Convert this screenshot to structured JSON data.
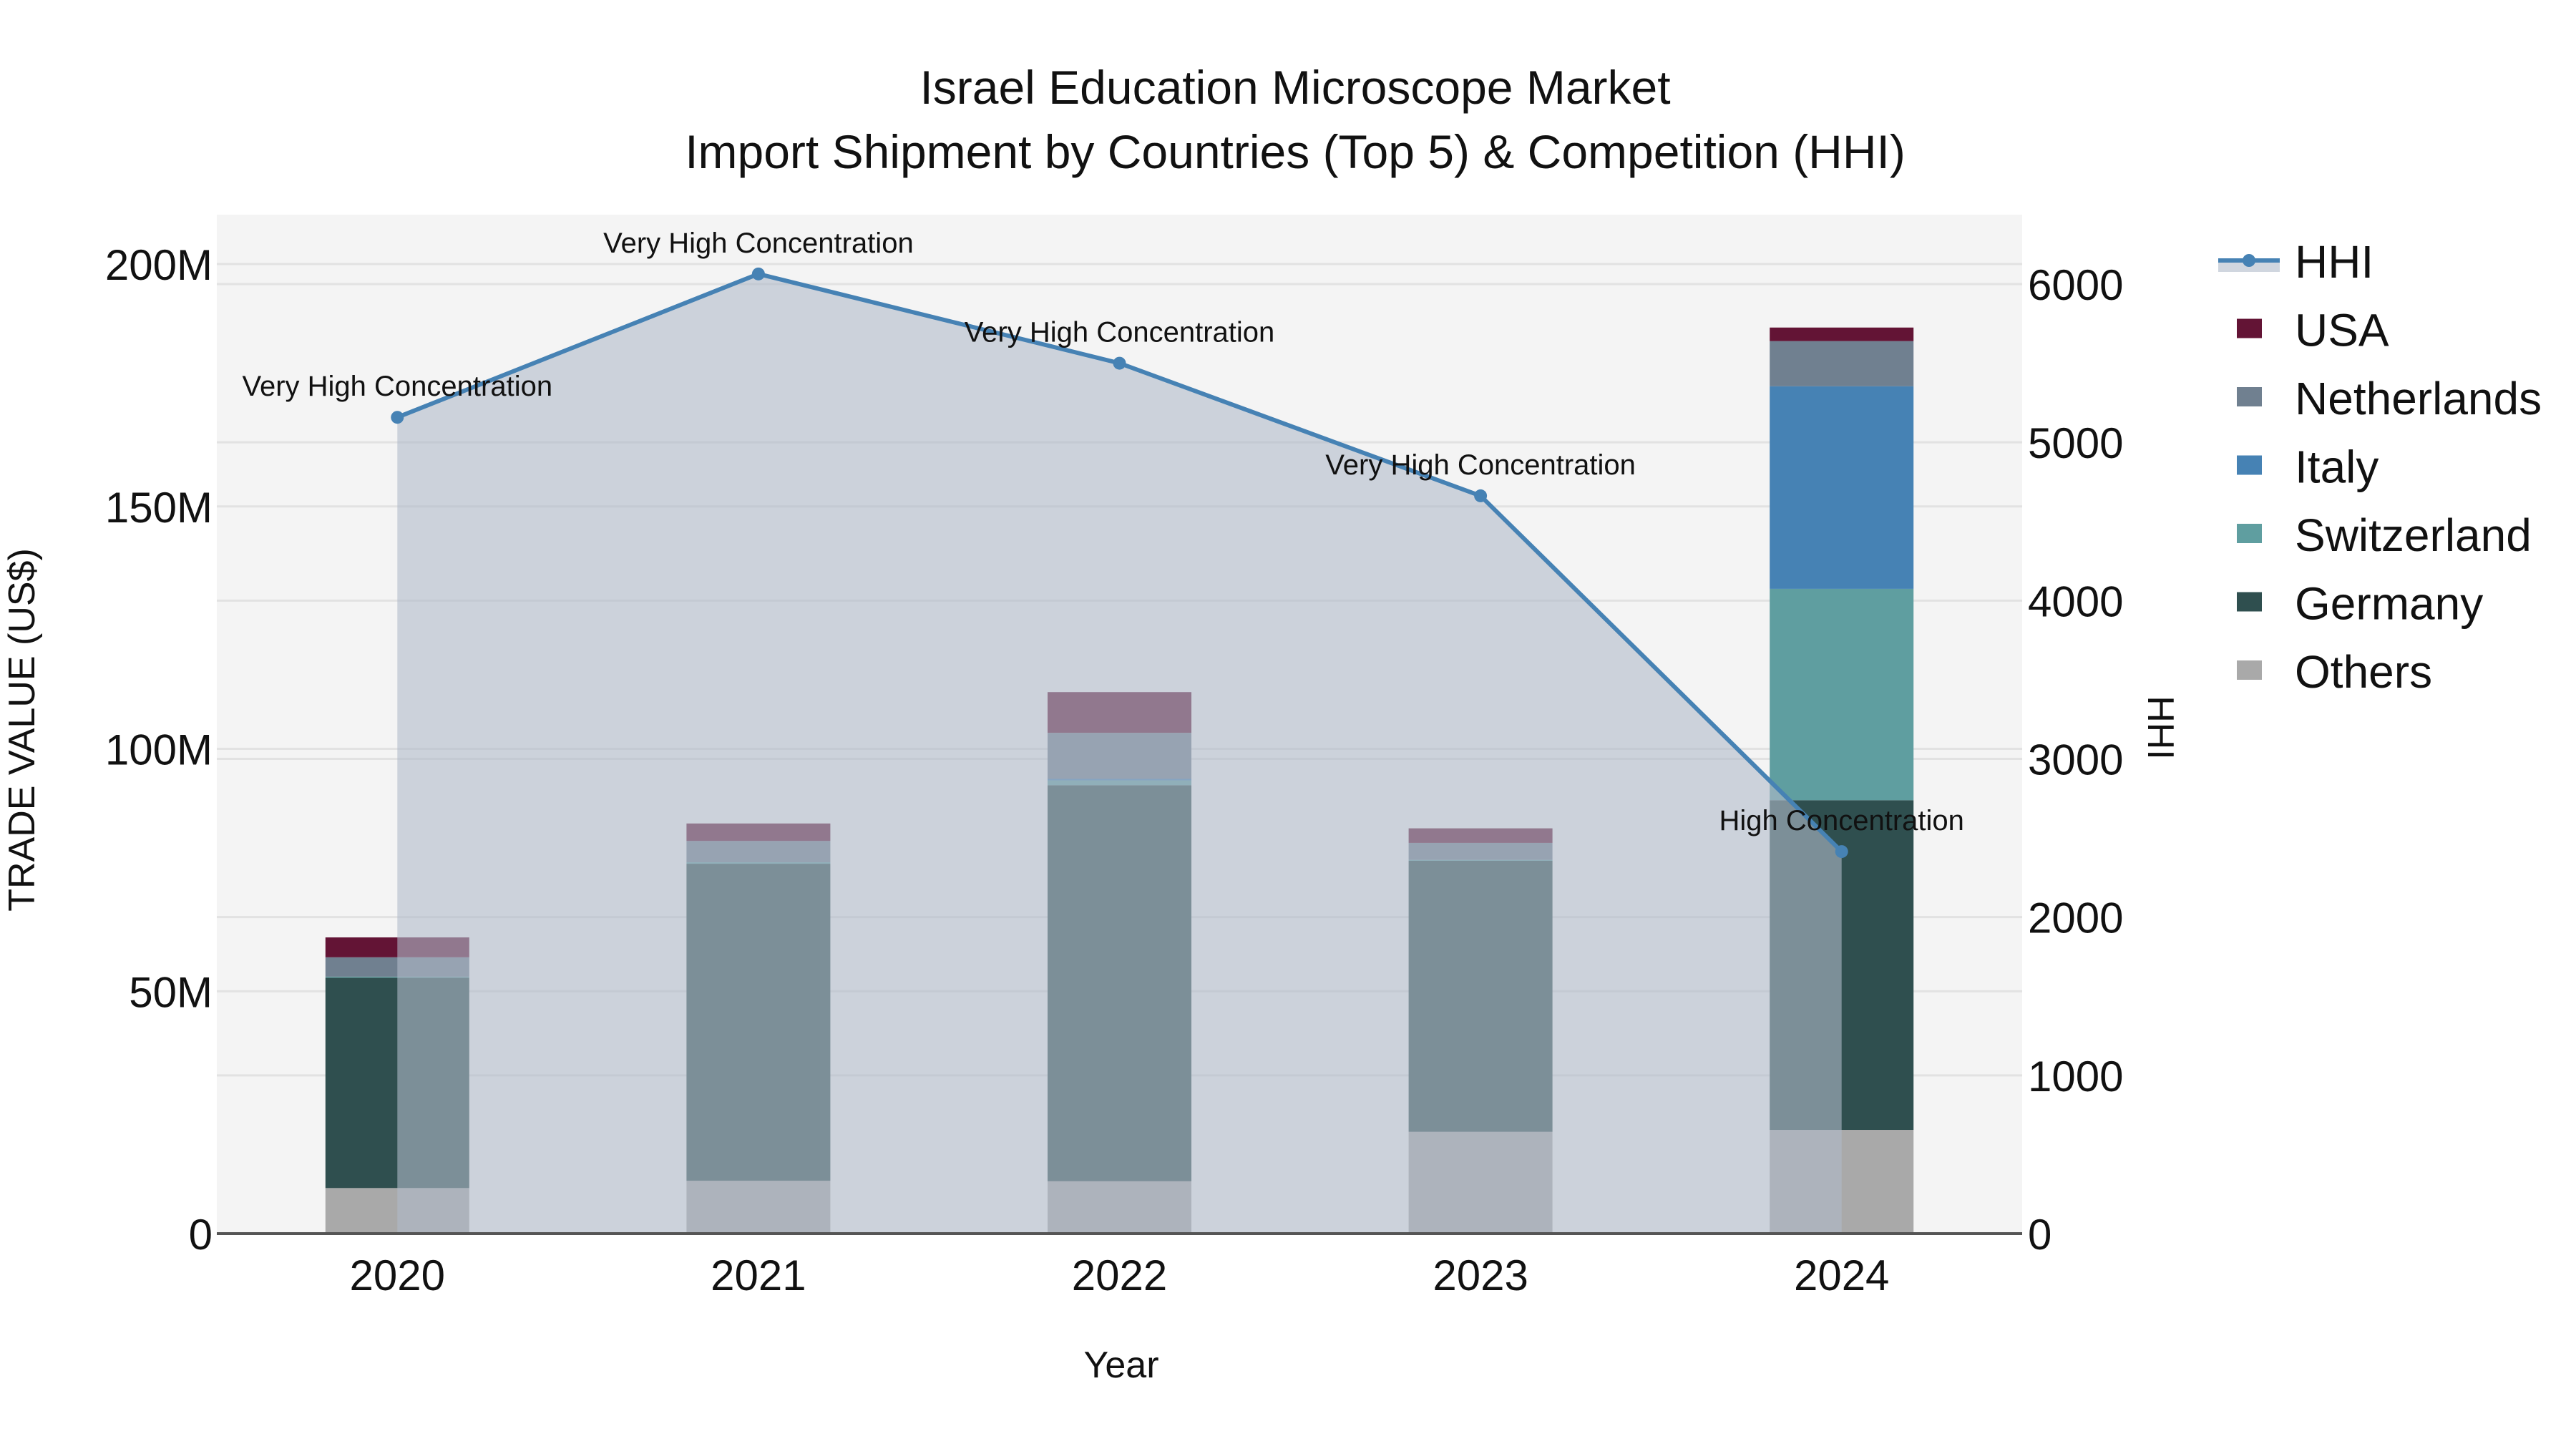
{
  "chart_data": {
    "type": "bar",
    "title": "Israel Education Microscope Market",
    "subtitle": "Import Shipment by Countries (Top 5) & Competition (HHI)",
    "xlabel": "Year",
    "ylabel": "TRADE VALUE (US$)",
    "y2label": "HHI",
    "categories": [
      "2020",
      "2021",
      "2022",
      "2023",
      "2024"
    ],
    "stacked": true,
    "ylim": [
      0,
      210000000
    ],
    "y_ticks": [
      0,
      50000000,
      100000000,
      150000000,
      200000000
    ],
    "y_tick_labels": [
      "0",
      "50M",
      "100M",
      "150M",
      "200M"
    ],
    "y2lim": [
      0,
      6500
    ],
    "y2_ticks": [
      0,
      1000,
      2000,
      3000,
      4000,
      5000,
      6000
    ],
    "y2_tick_labels": [
      "0",
      "1000",
      "2000",
      "3000",
      "4000",
      "5000",
      "6000"
    ],
    "grid": true,
    "legend_position": "right",
    "series": [
      {
        "name": "Others",
        "color": "#a9a9a9",
        "values": [
          9400000,
          10900000,
          10800000,
          21000000,
          21400000
        ]
      },
      {
        "name": "Germany",
        "color": "#2f4f4f",
        "values": [
          43400000,
          65400000,
          81700000,
          55900000,
          68000000
        ]
      },
      {
        "name": "Switzerland",
        "color": "#5f9ea0",
        "values": [
          200000,
          300000,
          1000000,
          200000,
          43600000
        ]
      },
      {
        "name": "Italy",
        "color": "#4682b4",
        "values": [
          0,
          0,
          300000,
          0,
          41800000
        ]
      },
      {
        "name": "Netherlands",
        "color": "#708090",
        "values": [
          4000000,
          4400000,
          9500000,
          3500000,
          9300000
        ]
      },
      {
        "name": "USA",
        "color": "#631435",
        "values": [
          4100000,
          3600000,
          8400000,
          3000000,
          2800000
        ]
      }
    ],
    "line_series": {
      "name": "HHI",
      "axis": "y2",
      "color": "#4682b4",
      "fill_color": "rgba(176,187,201,0.6)",
      "values": [
        5158,
        6064,
        5500,
        4662,
        2414
      ],
      "annotations": [
        "Very High Concentration",
        "Very High Concentration",
        "Very High Concentration",
        "Very High Concentration",
        "High Concentration"
      ]
    },
    "legend_order": [
      "HHI",
      "USA",
      "Netherlands",
      "Italy",
      "Switzerland",
      "Germany",
      "Others"
    ]
  },
  "colors": {
    "plot_bg": "#f4f4f4",
    "grid": "#e2e2e2",
    "axis_line": "#555555",
    "text": "#111111"
  }
}
